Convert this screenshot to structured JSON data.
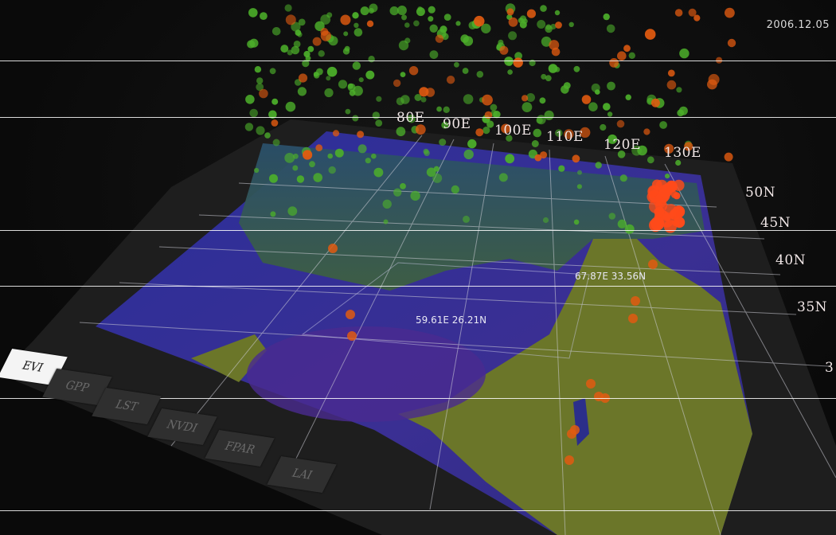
{
  "date": "2006.12.05",
  "longitude_labels": [
    "80E",
    "90E",
    "100E",
    "110E",
    "120E",
    "130E"
  ],
  "latitude_labels": [
    "50N",
    "45N",
    "40N",
    "35N",
    "3"
  ],
  "readouts": {
    "top": "67.87E 33.56N",
    "bottom": "59.61E 26.21N"
  },
  "layer_tabs": [
    {
      "label": "EVI",
      "active": true
    },
    {
      "label": "GPP",
      "active": false
    },
    {
      "label": "LST",
      "active": false
    },
    {
      "label": "NVDI",
      "active": false
    },
    {
      "label": "FPAR",
      "active": false
    },
    {
      "label": "LAI",
      "active": false
    }
  ],
  "colors": {
    "ocean": "#2d2f8e",
    "land_dry": "#6f7a2a",
    "land_green": "#2f5a4a",
    "point_green": "#4caf2a",
    "point_orange": "#e05a10",
    "grid": "#cfcfd8"
  }
}
